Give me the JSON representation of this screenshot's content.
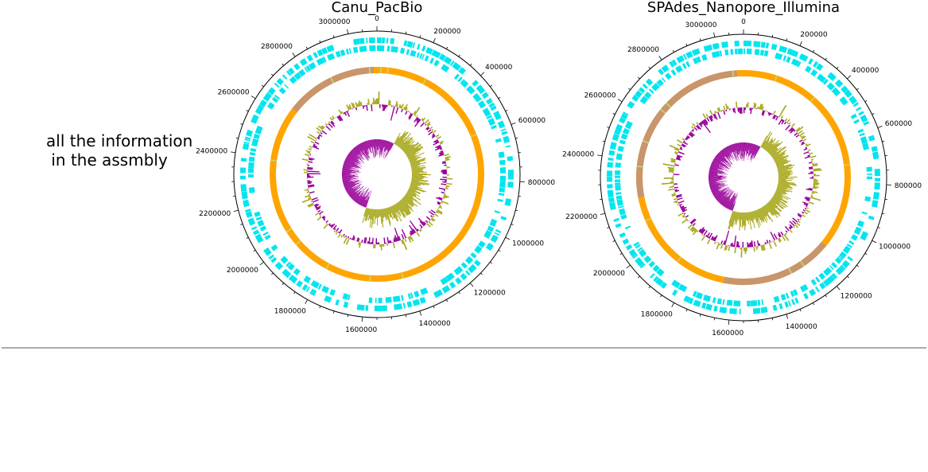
{
  "row_label": "all the information\n in the assmbly",
  "colors": {
    "cds": "#00e5ee",
    "contig_main": "#ffa500",
    "contig_alt": "#c8956c",
    "contig_mark": "#c0d878",
    "gc_positive": "#aaaa22",
    "gc_negative": "#990099",
    "axis": "#000000"
  },
  "maps": [
    {
      "title": "Canu_PacBio",
      "tick_labels": [
        "0",
        "200000",
        "400000",
        "600000",
        "800000",
        "1000000",
        "1200000",
        "1400000",
        "1600000",
        "1800000",
        "2000000",
        "2200000",
        "2400000",
        "2600000",
        "2800000",
        "3000000"
      ],
      "contig_alt_span_fraction": [
        0.855,
        0.995
      ]
    },
    {
      "title": "SPAdes_Nanopore_Illumina",
      "tick_labels": [
        "0",
        "200000",
        "400000",
        "600000",
        "800000",
        "1000000",
        "1200000",
        "1400000",
        "1600000",
        "1800000",
        "2000000",
        "2200000",
        "2400000",
        "2600000",
        "2800000",
        "3000000"
      ],
      "contig_alt_span_fraction": [
        0.36,
        0.53,
        0.72,
        0.99
      ]
    }
  ]
}
